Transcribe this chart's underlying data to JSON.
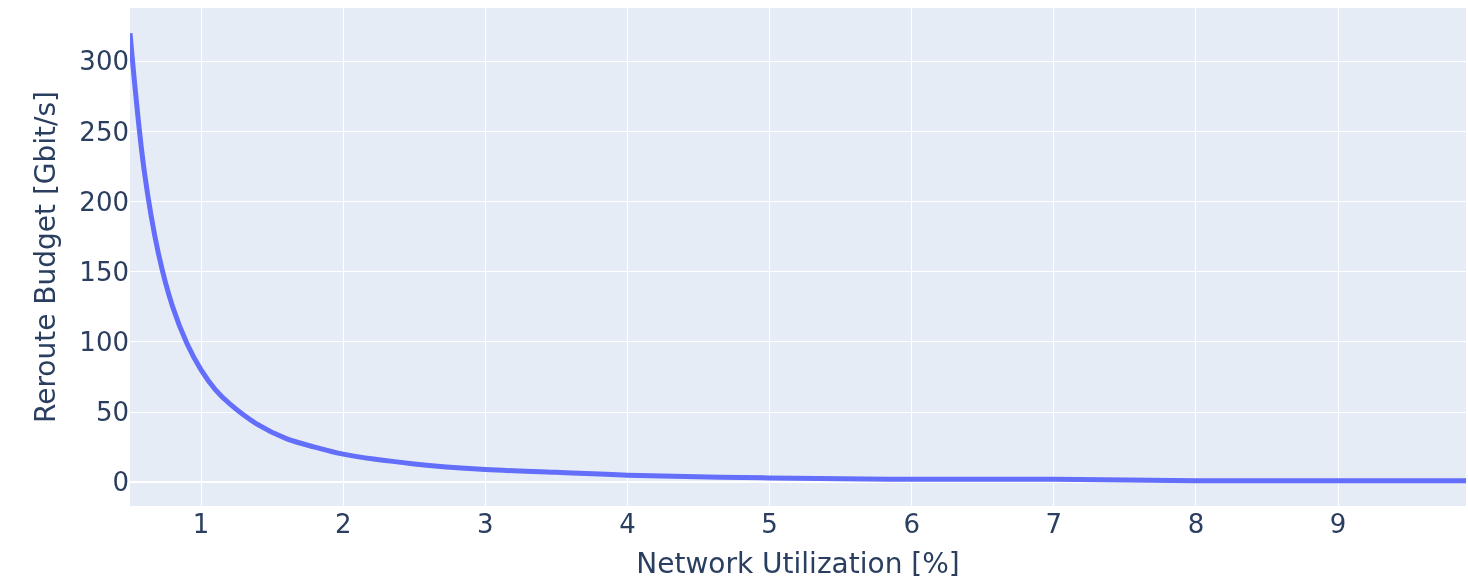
{
  "chart_data": {
    "type": "line",
    "xlabel": "Network Utilization [%]",
    "ylabel": "Reroute Budget [Gbit/s]",
    "x": [
      0.5,
      0.6,
      0.7,
      0.8,
      0.9,
      1.0,
      1.1,
      1.2,
      1.4,
      1.6,
      1.8,
      2.0,
      2.5,
      3.0,
      3.5,
      4.0,
      5.0,
      6.0,
      7.0,
      8.0,
      9.0,
      9.9
    ],
    "series": [
      {
        "color": "#636efa",
        "values": [
          320,
          222,
          163,
          125,
          99,
          80,
          66,
          56,
          41,
          31,
          25,
          20,
          13,
          9,
          7,
          5,
          3,
          2,
          2,
          1,
          1,
          1
        ]
      }
    ],
    "xlim": [
      0.5,
      9.9
    ],
    "xticks": [
      1,
      2,
      3,
      4,
      5,
      6,
      7,
      8,
      9
    ],
    "ylim": [
      -17,
      338
    ],
    "yticks": [
      0,
      50,
      100,
      150,
      200,
      250,
      300
    ],
    "grid": true,
    "legend": false,
    "marker": "none",
    "line_style": "solid"
  }
}
